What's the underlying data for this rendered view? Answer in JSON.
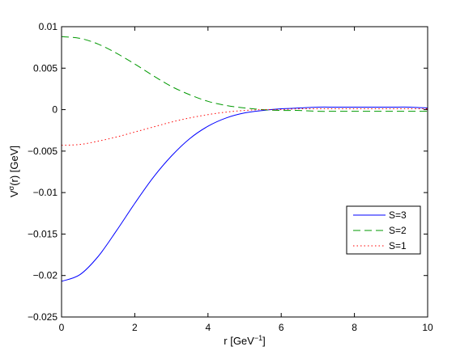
{
  "chart_data": {
    "type": "line",
    "xlabel": "r [GeV",
    "xlabel_sup": "−1",
    "xlabel_end": "]",
    "ylabel": "V",
    "ylabel_sup": "σ",
    "ylabel_end": "(r) [GeV]",
    "xlim": [
      0,
      10
    ],
    "ylim": [
      -0.025,
      0.01
    ],
    "xticks": [
      0,
      2,
      4,
      6,
      8,
      10
    ],
    "xtick_labels": [
      "0",
      "2",
      "4",
      "6",
      "8",
      "10"
    ],
    "yticks": [
      -0.025,
      -0.02,
      -0.015,
      -0.01,
      -0.005,
      0,
      0.005,
      0.01
    ],
    "ytick_labels": [
      "−0.025",
      "−0.02",
      "−0.015",
      "−0.01",
      "−0.005",
      "0",
      "0.005",
      "0.01"
    ],
    "grid": false,
    "legend_position": "lower-right",
    "x": [
      0,
      0.5,
      1,
      1.5,
      2,
      2.5,
      3,
      3.5,
      4,
      4.5,
      5,
      5.5,
      6,
      6.5,
      7,
      7.5,
      8,
      8.5,
      9,
      9.5,
      10
    ],
    "series": [
      {
        "name": "S=3",
        "color": "#0000ff",
        "dash": "solid",
        "values": [
          -0.0207,
          -0.0199,
          -0.0177,
          -0.0146,
          -0.0113,
          -0.0082,
          -0.0056,
          -0.0035,
          -0.002,
          -0.001,
          -0.0004,
          -0.0001,
          0.0001,
          0.0002,
          0.0003,
          0.0003,
          0.0003,
          0.0003,
          0.0003,
          0.0003,
          0.0002
        ]
      },
      {
        "name": "S=2",
        "color": "#009900",
        "dash": "dashed",
        "values": [
          0.0088,
          0.0086,
          0.0079,
          0.0068,
          0.0055,
          0.0041,
          0.0028,
          0.0018,
          0.001,
          0.0005,
          0.0002,
          0.0,
          -0.0001,
          -0.0001,
          -0.0002,
          -0.0002,
          -0.0002,
          -0.0002,
          -0.0002,
          -0.0002,
          -0.0002
        ]
      },
      {
        "name": "S=1",
        "color": "#ff0000",
        "dash": "dotted",
        "values": [
          -0.0043,
          -0.0042,
          -0.0038,
          -0.0033,
          -0.0027,
          -0.0021,
          -0.0015,
          -0.001,
          -0.0006,
          -0.0003,
          -0.0001,
          0.0,
          0.0,
          0.0001,
          0.0001,
          0.0001,
          0.0001,
          0.0001,
          0.0001,
          0.0001,
          0.0001
        ]
      }
    ]
  }
}
